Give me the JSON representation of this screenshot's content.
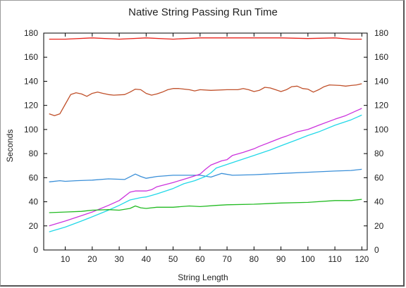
{
  "chart_data": {
    "type": "line",
    "title": "Native String Passing Run Time",
    "xlabel": "String Length",
    "ylabel": "Seconds",
    "xlim": [
      2,
      122
    ],
    "ylim": [
      0,
      180
    ],
    "xticks": [
      10,
      20,
      30,
      40,
      50,
      60,
      70,
      80,
      90,
      100,
      110,
      120
    ],
    "yticks": [
      0,
      20,
      40,
      60,
      80,
      100,
      120,
      140,
      160,
      180
    ],
    "grid": false,
    "legend": false,
    "series": [
      {
        "color": "#e8221a",
        "points": [
          [
            4,
            175
          ],
          [
            10,
            175
          ],
          [
            20,
            176
          ],
          [
            30,
            175
          ],
          [
            40,
            176
          ],
          [
            50,
            175
          ],
          [
            60,
            176
          ],
          [
            70,
            176
          ],
          [
            80,
            176
          ],
          [
            90,
            176
          ],
          [
            100,
            175.5
          ],
          [
            110,
            176
          ],
          [
            116,
            175
          ],
          [
            120,
            175
          ]
        ]
      },
      {
        "color": "#c0502a",
        "points": [
          [
            4,
            113
          ],
          [
            6,
            111.5
          ],
          [
            8,
            113
          ],
          [
            10,
            121
          ],
          [
            12,
            129
          ],
          [
            14,
            130.5
          ],
          [
            16,
            129.5
          ],
          [
            18,
            127.5
          ],
          [
            20,
            130
          ],
          [
            22,
            131
          ],
          [
            24,
            130
          ],
          [
            26,
            129
          ],
          [
            28,
            128.5
          ],
          [
            32,
            129
          ],
          [
            34,
            131
          ],
          [
            36,
            133.5
          ],
          [
            38,
            133
          ],
          [
            40,
            130
          ],
          [
            42,
            128.5
          ],
          [
            44,
            129.5
          ],
          [
            46,
            131
          ],
          [
            48,
            133
          ],
          [
            50,
            134
          ],
          [
            52,
            134
          ],
          [
            56,
            133
          ],
          [
            58,
            132
          ],
          [
            60,
            133
          ],
          [
            64,
            132.5
          ],
          [
            70,
            133
          ],
          [
            74,
            133
          ],
          [
            76,
            134
          ],
          [
            78,
            133
          ],
          [
            80,
            131.5
          ],
          [
            82,
            132.5
          ],
          [
            84,
            135
          ],
          [
            86,
            134.5
          ],
          [
            88,
            133
          ],
          [
            90,
            131.5
          ],
          [
            92,
            133
          ],
          [
            94,
            135.5
          ],
          [
            96,
            136
          ],
          [
            98,
            134
          ],
          [
            100,
            133.5
          ],
          [
            102,
            131
          ],
          [
            104,
            133
          ],
          [
            106,
            135.5
          ],
          [
            108,
            137
          ],
          [
            112,
            136.5
          ],
          [
            114,
            136
          ],
          [
            116,
            136.5
          ],
          [
            118,
            137
          ],
          [
            120,
            138
          ]
        ]
      },
      {
        "color": "#3a8fd8",
        "points": [
          [
            4,
            56.5
          ],
          [
            8,
            57.5
          ],
          [
            10,
            57
          ],
          [
            14,
            57.5
          ],
          [
            20,
            58
          ],
          [
            26,
            59
          ],
          [
            32,
            58.5
          ],
          [
            36,
            63
          ],
          [
            38,
            61
          ],
          [
            40,
            59.5
          ],
          [
            44,
            61
          ],
          [
            50,
            62
          ],
          [
            56,
            62
          ],
          [
            60,
            62
          ],
          [
            64,
            60.5
          ],
          [
            68,
            63.5
          ],
          [
            72,
            62
          ],
          [
            80,
            62.5
          ],
          [
            90,
            63.5
          ],
          [
            100,
            64.5
          ],
          [
            110,
            65.5
          ],
          [
            116,
            66
          ],
          [
            120,
            67
          ]
        ]
      },
      {
        "color": "#cc33dd",
        "points": [
          [
            4,
            20
          ],
          [
            10,
            24
          ],
          [
            16,
            28.5
          ],
          [
            20,
            31.5
          ],
          [
            26,
            37
          ],
          [
            30,
            41
          ],
          [
            34,
            48
          ],
          [
            36,
            49
          ],
          [
            40,
            49
          ],
          [
            42,
            50
          ],
          [
            44,
            52.5
          ],
          [
            50,
            56
          ],
          [
            56,
            60
          ],
          [
            60,
            63
          ],
          [
            62,
            67
          ],
          [
            64,
            70.5
          ],
          [
            68,
            74
          ],
          [
            70,
            75
          ],
          [
            72,
            78.5
          ],
          [
            76,
            81
          ],
          [
            80,
            84
          ],
          [
            82,
            86
          ],
          [
            86,
            89.5
          ],
          [
            90,
            93
          ],
          [
            92,
            94.5
          ],
          [
            96,
            98
          ],
          [
            100,
            100
          ],
          [
            104,
            103.5
          ],
          [
            110,
            108.5
          ],
          [
            114,
            111.5
          ],
          [
            120,
            117.5
          ]
        ]
      },
      {
        "color": "#22d8e8",
        "points": [
          [
            4,
            15
          ],
          [
            10,
            19
          ],
          [
            16,
            24
          ],
          [
            20,
            27.5
          ],
          [
            26,
            33
          ],
          [
            30,
            37
          ],
          [
            34,
            41.5
          ],
          [
            38,
            43.5
          ],
          [
            40,
            44
          ],
          [
            44,
            46.5
          ],
          [
            50,
            51
          ],
          [
            54,
            55
          ],
          [
            58,
            57.5
          ],
          [
            62,
            61
          ],
          [
            64,
            64
          ],
          [
            66,
            68
          ],
          [
            70,
            71
          ],
          [
            74,
            74
          ],
          [
            80,
            78.5
          ],
          [
            86,
            83
          ],
          [
            90,
            86.5
          ],
          [
            96,
            91.5
          ],
          [
            100,
            95
          ],
          [
            104,
            98
          ],
          [
            110,
            103.5
          ],
          [
            116,
            108
          ],
          [
            120,
            112
          ]
        ]
      },
      {
        "color": "#22bb22",
        "points": [
          [
            4,
            31
          ],
          [
            10,
            31.5
          ],
          [
            16,
            32
          ],
          [
            20,
            33
          ],
          [
            26,
            33.5
          ],
          [
            30,
            33
          ],
          [
            34,
            34.5
          ],
          [
            36,
            36.5
          ],
          [
            38,
            35
          ],
          [
            40,
            34.5
          ],
          [
            44,
            35.5
          ],
          [
            50,
            35.5
          ],
          [
            56,
            36.5
          ],
          [
            60,
            36
          ],
          [
            66,
            37
          ],
          [
            70,
            37.5
          ],
          [
            80,
            38
          ],
          [
            90,
            39
          ],
          [
            100,
            39.5
          ],
          [
            110,
            41
          ],
          [
            116,
            41
          ],
          [
            120,
            42
          ]
        ]
      }
    ]
  }
}
